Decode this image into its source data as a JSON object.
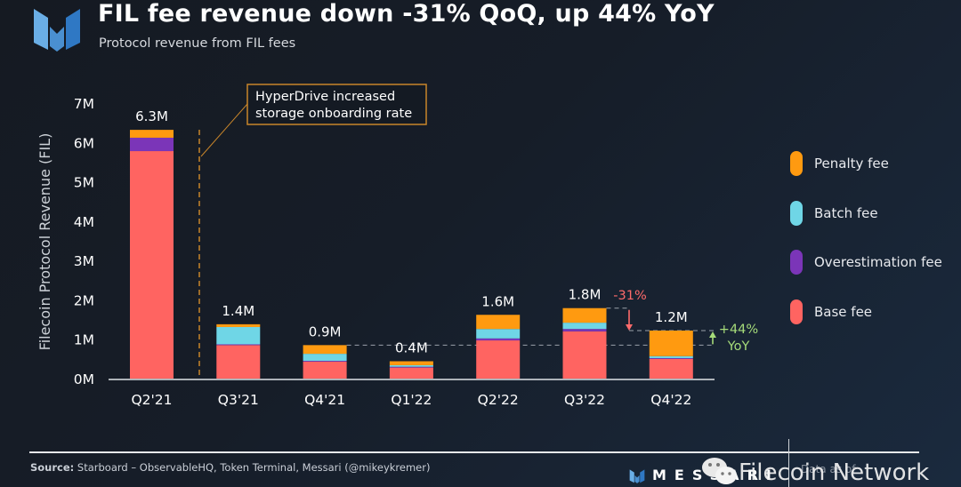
{
  "header": {
    "title": "FIL fee revenue down -31% QoQ, up 44% YoY",
    "subtitle": "Protocol revenue from FIL fees",
    "logo_icon": "messari-logo-icon"
  },
  "colors": {
    "penalty": "#ff9a10",
    "batch": "#6fd6e6",
    "overestimation": "#7b35b8",
    "base": "#ff6461",
    "annotation_box": "#c8852a",
    "qoq": "#ff6b6b",
    "yoy": "#a6dc7a"
  },
  "chart_data": {
    "type": "bar",
    "stacked": true,
    "title": "FIL fee revenue down -31% QoQ, up 44% YoY",
    "subtitle": "Protocol revenue from FIL fees",
    "xlabel": "",
    "ylabel": "Filecoin Protocol Revenue (FIL)",
    "ylim": [
      0,
      7
    ],
    "y_unit": "M",
    "yticks": [
      "0M",
      "1M",
      "2M",
      "3M",
      "4M",
      "5M",
      "6M",
      "7M"
    ],
    "grid": false,
    "legend_position": "right",
    "categories": [
      "Q2'21",
      "Q3'21",
      "Q4'21",
      "Q1'22",
      "Q2'22",
      "Q3'22",
      "Q4'22"
    ],
    "series": [
      {
        "name": "Base fee",
        "key": "base",
        "values": [
          5.78,
          0.85,
          0.43,
          0.28,
          0.97,
          1.2,
          0.5
        ]
      },
      {
        "name": "Overestimation fee",
        "key": "overestimation",
        "values": [
          0.34,
          0.02,
          0.02,
          0.02,
          0.05,
          0.06,
          0.02
        ]
      },
      {
        "name": "Batch fee",
        "key": "batch",
        "values": [
          0.0,
          0.44,
          0.18,
          0.04,
          0.24,
          0.16,
          0.05
        ]
      },
      {
        "name": "Penalty fee",
        "key": "penalty",
        "values": [
          0.2,
          0.07,
          0.22,
          0.1,
          0.36,
          0.37,
          0.65
        ]
      }
    ],
    "total_labels": [
      "6.3M",
      "1.4M",
      "0.9M",
      "0.4M",
      "1.6M",
      "1.8M",
      "1.2M"
    ],
    "annotations": [
      {
        "type": "vline",
        "after_category": "Q2'21",
        "text": "HyperDrive increased storage onboarding rate",
        "lines": [
          "HyperDrive increased",
          "storage onboarding rate"
        ]
      },
      {
        "type": "qoq",
        "from": "Q3'22",
        "to": "Q4'22",
        "text": "-31%"
      },
      {
        "type": "yoy",
        "from": "Q4'21",
        "to": "Q4'22",
        "text": "+44%",
        "text2": "YoY"
      }
    ]
  },
  "legend": [
    {
      "label": "Penalty fee",
      "key": "penalty"
    },
    {
      "label": "Batch fee",
      "key": "batch"
    },
    {
      "label": "Overestimation fee",
      "key": "overestimation"
    },
    {
      "label": "Base fee",
      "key": "base"
    }
  ],
  "footer": {
    "source_label": "Source:",
    "source_text": " Starboard – ObservableHQ, Token Terminal, Messari (@mikeykremer)",
    "brand": "MESSARI",
    "date_label": "Data as of",
    "watermark": "Filecoin Network",
    "wechat_icon": "wechat-icon"
  }
}
